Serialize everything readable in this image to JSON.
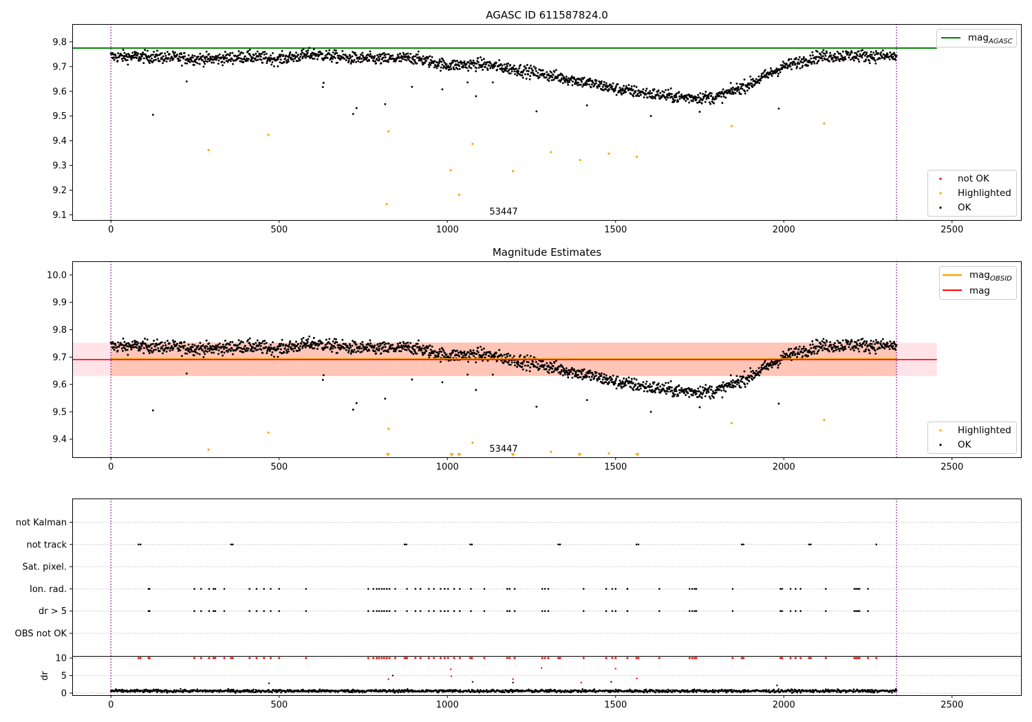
{
  "colors": {
    "ok": "#000000",
    "not_ok": "#ff0000",
    "highlighted": "#ffa500",
    "mag_agasc": "#008000",
    "mag_obsid": "#ffa500",
    "mag": "#ff0000",
    "obs_window_line": "#800080",
    "band_inner": "#ffa07a",
    "band_outer": "#ffc0cb",
    "flag_gridline": "#b0b0b0"
  },
  "chart_data": [
    {
      "type": "scatter",
      "title": "AGASC ID 611587824.0",
      "xlim": [
        -115,
        2705
      ],
      "ylim": [
        9.079,
        9.872
      ],
      "xticks": [
        0,
        500,
        1000,
        1500,
        2000,
        2500
      ],
      "yticks": [
        9.1,
        9.2,
        9.3,
        9.4,
        9.5,
        9.6,
        9.7,
        9.8
      ],
      "ytick_labels": [
        "9.1",
        "9.2",
        "9.3",
        "9.4",
        "9.5",
        "9.6",
        "9.7",
        "9.8"
      ],
      "grid": false,
      "vlines": [
        0,
        2335
      ],
      "hlines": [
        {
          "name": "mag_AGASC",
          "y": 9.775,
          "x_range": [
            -115,
            2455
          ],
          "color": "#008000"
        }
      ],
      "annotation": {
        "text": "53447",
        "x": 1155,
        "y": 9.1
      },
      "legends": [
        {
          "placement": "upper right",
          "entries": [
            {
              "label": "mag",
              "sub": "AGASC",
              "kind": "line",
              "color": "#008000"
            }
          ]
        },
        {
          "placement": "lower right",
          "entries": [
            {
              "label": "not OK",
              "kind": "marker",
              "color": "#ff0000"
            },
            {
              "label": "Highlighted",
              "kind": "marker",
              "color": "#ffa500"
            },
            {
              "label": "OK",
              "kind": "marker",
              "color": "#000000"
            }
          ]
        }
      ],
      "trend": {
        "name": "OK",
        "x": [
          0,
          100,
          200,
          300,
          400,
          500,
          600,
          700,
          800,
          900,
          1000,
          1100,
          1200,
          1300,
          1400,
          1500,
          1600,
          1700,
          1800,
          1900,
          2000,
          2100,
          2200,
          2335
        ],
        "y": [
          9.74,
          9.74,
          9.735,
          9.73,
          9.74,
          9.73,
          9.75,
          9.735,
          9.73,
          9.735,
          9.705,
          9.71,
          9.69,
          9.665,
          9.64,
          9.61,
          9.59,
          9.575,
          9.575,
          9.63,
          9.7,
          9.74,
          9.745,
          9.74
        ],
        "scatter": 0.012,
        "count": 1850
      },
      "outliers": {
        "name": "OK",
        "points": [
          [
            125,
            9.505
          ],
          [
            225,
            9.64
          ],
          [
            630,
            9.617
          ],
          [
            632,
            9.634
          ],
          [
            720,
            9.508
          ],
          [
            730,
            9.532
          ],
          [
            815,
            9.548
          ],
          [
            895,
            9.618
          ],
          [
            985,
            9.608
          ],
          [
            1060,
            9.636
          ],
          [
            1085,
            9.58
          ],
          [
            1135,
            9.636
          ],
          [
            1265,
            9.519
          ],
          [
            1415,
            9.543
          ],
          [
            1605,
            9.5
          ],
          [
            1750,
            9.517
          ],
          [
            1985,
            9.53
          ]
        ]
      },
      "highlighted": {
        "name": "Highlighted",
        "points": [
          [
            290,
            9.362
          ],
          [
            468,
            9.424
          ],
          [
            820,
            9.143
          ],
          [
            825,
            9.438
          ],
          [
            1010,
            9.28
          ],
          [
            1035,
            9.181
          ],
          [
            1075,
            9.387
          ],
          [
            1195,
            9.277
          ],
          [
            1308,
            9.354
          ],
          [
            1395,
            9.322
          ],
          [
            1480,
            9.348
          ],
          [
            1563,
            9.335
          ],
          [
            1845,
            9.459
          ],
          [
            2120,
            9.47
          ]
        ]
      }
    },
    {
      "type": "scatter",
      "title": "Magnitude Estimates",
      "xlim": [
        -115,
        2705
      ],
      "ylim": [
        9.334,
        10.05
      ],
      "xticks": [
        0,
        500,
        1000,
        1500,
        2000,
        2500
      ],
      "yticks": [
        9.4,
        9.5,
        9.6,
        9.7,
        9.8,
        9.9,
        10.0
      ],
      "ytick_labels": [
        "9.4",
        "9.5",
        "9.6",
        "9.7",
        "9.8",
        "9.9",
        "10.0"
      ],
      "grid": false,
      "vlines": [
        0,
        2335
      ],
      "bands": [
        {
          "name": "mag_OBSID range",
          "x_range": [
            0,
            2335
          ],
          "y_range": [
            9.631,
            9.753
          ],
          "color": "#ffa07a"
        },
        {
          "name": "mag range",
          "x_range": [
            -115,
            2455
          ],
          "y_range": [
            9.631,
            9.753
          ],
          "color": "#ffc0cb"
        }
      ],
      "hlines": [
        {
          "name": "mag_OBSID",
          "y": 9.693,
          "x_range": [
            0,
            2335
          ],
          "color": "#ffa500"
        },
        {
          "name": "mag",
          "y": 9.691,
          "x_range": [
            -115,
            2455
          ],
          "color": "#ff0000"
        }
      ],
      "annotation": {
        "text": "53447",
        "x": 1155,
        "y": 9.355
      },
      "legends": [
        {
          "placement": "upper right",
          "entries": [
            {
              "label": "mag",
              "sub": "OBSID",
              "kind": "line",
              "color": "#ffa500"
            },
            {
              "label": "mag",
              "kind": "line",
              "color": "#ff0000"
            }
          ]
        },
        {
          "placement": "lower right",
          "entries": [
            {
              "label": "Highlighted",
              "kind": "marker",
              "color": "#ffa500"
            },
            {
              "label": "OK",
              "kind": "marker",
              "color": "#000000"
            }
          ]
        }
      ],
      "highlighted": {
        "name": "Highlighted",
        "points": [
          [
            290,
            9.362
          ],
          [
            468,
            9.424
          ],
          [
            825,
            9.438
          ],
          [
            1075,
            9.387
          ],
          [
            1308,
            9.354
          ],
          [
            1480,
            9.348
          ],
          [
            1845,
            9.459
          ],
          [
            2120,
            9.47
          ]
        ]
      },
      "below_range": {
        "name": "Highlighted",
        "x": [
          823,
          1013,
          1035,
          1195,
          1393,
          1565
        ]
      }
    },
    {
      "type": "scatter",
      "title": "",
      "xlim": [
        -115,
        2705
      ],
      "categories": [
        "OBS not OK",
        "dr > 5",
        "Ion. rad.",
        "Sat. pixel.",
        "not track",
        "not Kalman"
      ],
      "grid": true,
      "vlines": [
        0,
        2335
      ],
      "flags": [
        {
          "category": "OBS not OK",
          "x": []
        },
        {
          "category": "dr > 5",
          "x": [
            112,
            115,
            248,
            268,
            292,
            305,
            310,
            337,
            412,
            433,
            455,
            475,
            500,
            580,
            765,
            780,
            790,
            797,
            805,
            812,
            820,
            828,
            845,
            880,
            905,
            920,
            945,
            960,
            980,
            992,
            1002,
            1020,
            1037,
            1070,
            1110,
            1178,
            1185,
            1200,
            1282,
            1290,
            1300,
            1405,
            1472,
            1490,
            1500,
            1535,
            1535,
            1630,
            1720,
            1728,
            1735,
            1740,
            1848,
            1990,
            1995,
            2020,
            2035,
            2050,
            2125,
            2210,
            2215,
            2220,
            2225,
            2250
          ]
        },
        {
          "category": "Ion. rad.",
          "x": [
            112,
            115,
            248,
            268,
            292,
            305,
            310,
            337,
            412,
            433,
            455,
            475,
            500,
            580,
            765,
            780,
            790,
            797,
            805,
            812,
            820,
            828,
            845,
            880,
            905,
            920,
            945,
            960,
            980,
            992,
            1002,
            1020,
            1037,
            1070,
            1110,
            1178,
            1185,
            1200,
            1282,
            1290,
            1300,
            1405,
            1472,
            1490,
            1500,
            1535,
            1535,
            1630,
            1720,
            1728,
            1735,
            1740,
            1848,
            1990,
            1995,
            2020,
            2035,
            2050,
            2125,
            2210,
            2215,
            2220,
            2225,
            2250
          ]
        },
        {
          "category": "Sat. pixel.",
          "x": []
        },
        {
          "category": "not track",
          "x": [
            82,
            88,
            357,
            362,
            873,
            878,
            1068,
            1073,
            1330,
            1335,
            1562,
            1568,
            1875,
            1880,
            2075,
            2080,
            2275
          ]
        },
        {
          "category": "not Kalman",
          "x": []
        }
      ]
    },
    {
      "type": "scatter",
      "title": "",
      "ylabel": "dr",
      "xlim": [
        -115,
        2705
      ],
      "xticks": [
        0,
        500,
        1000,
        1500,
        2000,
        2500
      ],
      "ylim": [
        -0.6,
        10.6
      ],
      "yticks": [
        0,
        5,
        10
      ],
      "ytick_labels": [
        "0",
        "5",
        "10"
      ],
      "grid": true,
      "vlines": [
        0,
        2335
      ],
      "baseline": {
        "name": "dr",
        "mean": 0.6,
        "spread": 0.4,
        "count": 1400
      },
      "capped": {
        "name": "dr > 5",
        "y": 10,
        "x": [
          82,
          88,
          112,
          115,
          248,
          268,
          292,
          305,
          310,
          337,
          357,
          362,
          412,
          433,
          455,
          475,
          500,
          580,
          765,
          780,
          790,
          797,
          805,
          812,
          820,
          828,
          845,
          873,
          878,
          880,
          905,
          920,
          945,
          960,
          980,
          992,
          1002,
          1020,
          1037,
          1068,
          1073,
          1110,
          1178,
          1185,
          1200,
          1282,
          1290,
          1300,
          1330,
          1335,
          1405,
          1472,
          1490,
          1500,
          1535,
          1562,
          1568,
          1630,
          1720,
          1728,
          1735,
          1740,
          1848,
          1875,
          1880,
          1990,
          1995,
          2020,
          2035,
          2050,
          2075,
          2080,
          2125,
          2210,
          2215,
          2220,
          2225,
          2250,
          2275
        ]
      },
      "red_points": [
        [
          825,
          4.0
        ],
        [
          1010,
          6.8
        ],
        [
          1012,
          4.8
        ],
        [
          1195,
          4.0
        ],
        [
          1280,
          7.2
        ],
        [
          1398,
          3.0
        ],
        [
          1500,
          7.0
        ],
        [
          1563,
          4.2
        ]
      ],
      "black_points": [
        [
          470,
          2.8
        ],
        [
          838,
          5.0
        ],
        [
          1075,
          3.2
        ],
        [
          1195,
          3.0
        ],
        [
          1487,
          3.2
        ],
        [
          1980,
          2.2
        ]
      ]
    }
  ]
}
